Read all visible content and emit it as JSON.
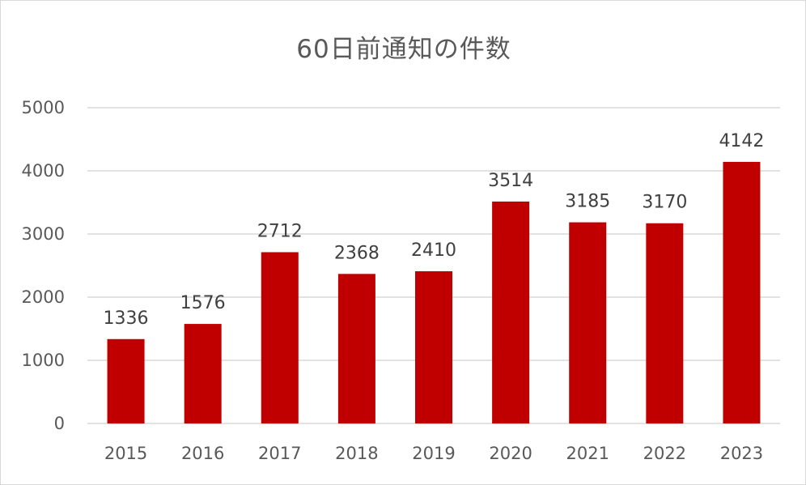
{
  "chart_data": {
    "type": "bar",
    "title": "60日前通知の件数",
    "categories": [
      "2015",
      "2016",
      "2017",
      "2018",
      "2019",
      "2020",
      "2021",
      "2022",
      "2023"
    ],
    "values": [
      1336,
      1576,
      2712,
      2368,
      2410,
      3514,
      3185,
      3170,
      4142
    ],
    "ylim": [
      0,
      5000
    ],
    "yticks": [
      0,
      1000,
      2000,
      3000,
      4000,
      5000
    ],
    "grid": true,
    "legend": "none",
    "bar_color": "#C00000",
    "grid_color": "#d9d9d9"
  }
}
